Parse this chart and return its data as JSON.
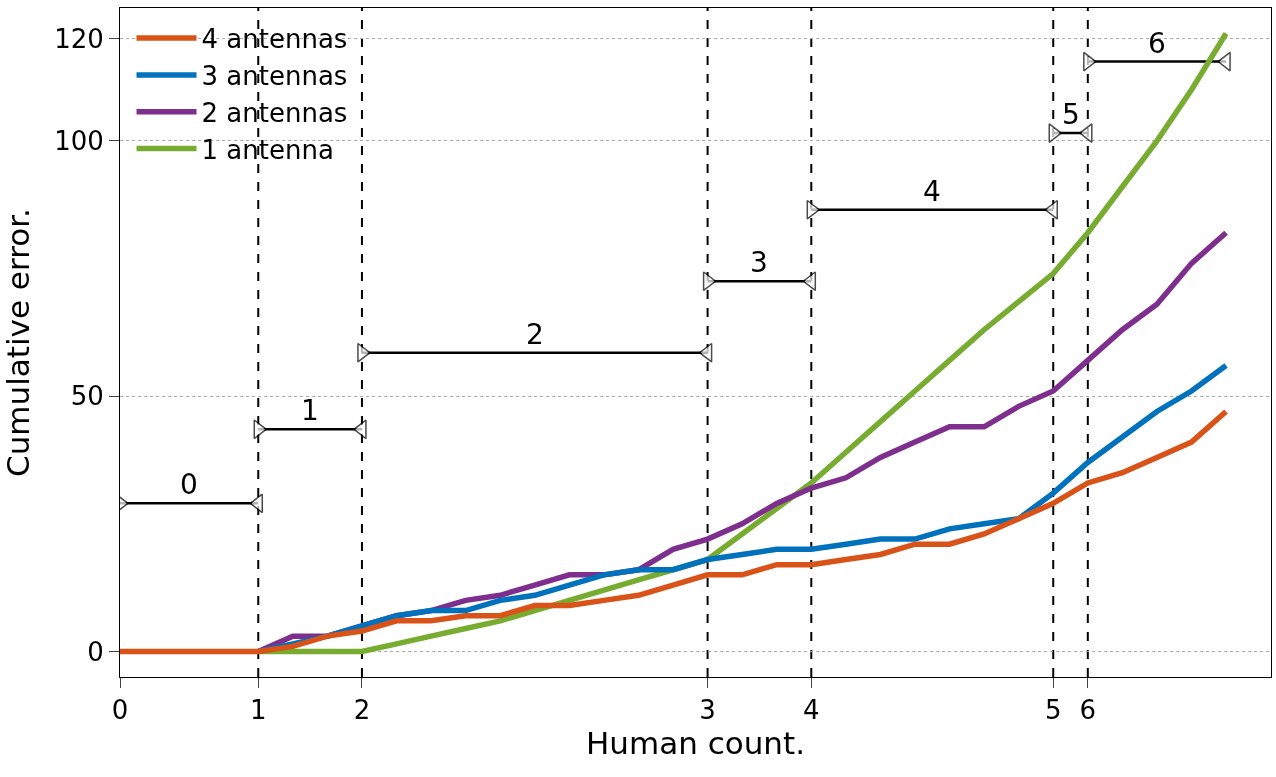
{
  "chart_data": {
    "type": "line",
    "xlabel": "Human count.",
    "ylabel": "Cumulative error.",
    "categories": [
      "0",
      null,
      null,
      null,
      "1",
      null,
      null,
      "2",
      null,
      null,
      null,
      null,
      null,
      null,
      null,
      null,
      null,
      "3",
      null,
      null,
      "4",
      null,
      null,
      null,
      null,
      null,
      null,
      "5",
      "6",
      null,
      null,
      null,
      null
    ],
    "series": [
      {
        "name": "4 antennas",
        "color": "#d95319",
        "values": [
          0,
          0,
          0,
          0,
          0,
          1,
          3,
          4,
          6,
          6,
          7,
          7,
          9,
          9,
          10,
          11,
          13,
          15,
          15,
          17,
          17,
          18,
          19,
          21,
          21,
          23,
          26,
          29,
          33,
          35,
          38,
          41,
          47
        ]
      },
      {
        "name": "3 antennas",
        "color": "#0072bd",
        "values": [
          null,
          null,
          null,
          null,
          0,
          1.5,
          3,
          5,
          7,
          8,
          8,
          10,
          11,
          13,
          15,
          16,
          16,
          18,
          19,
          20,
          20,
          21,
          22,
          22,
          24,
          25,
          26,
          31,
          37,
          42,
          47,
          51,
          56
        ]
      },
      {
        "name": "2 antennas",
        "color": "#7e2f8e",
        "values": [
          null,
          null,
          null,
          null,
          0,
          3,
          3,
          5,
          7,
          8,
          10,
          11,
          13,
          15,
          15,
          16,
          20,
          22,
          25,
          29,
          32,
          34,
          38,
          41,
          44,
          44,
          48,
          51,
          57,
          63,
          68,
          76,
          82
        ]
      },
      {
        "name": "1 antenna",
        "color": "#77ac30",
        "values": [
          null,
          null,
          null,
          null,
          0,
          0,
          0,
          0,
          1.5,
          3,
          4.5,
          6,
          8,
          10,
          12,
          14,
          16,
          18,
          23,
          28,
          33,
          39,
          45,
          51,
          57,
          63,
          68.5,
          74,
          82,
          91,
          100,
          110,
          121
        ]
      },
      {
        "name": "0",
        "type": "line",
        "marker": "triangle",
        "color": "#000000",
        "values": [
          29,
          null,
          null,
          null,
          29,
          null,
          null,
          null,
          null,
          null,
          null,
          null,
          null,
          null,
          null,
          null,
          null,
          null,
          null,
          null,
          null,
          null,
          null,
          null,
          null,
          null,
          null,
          null,
          null,
          null,
          null,
          null,
          null
        ]
      },
      {
        "name": "1",
        "type": "line",
        "marker": "triangle",
        "color": "#000000",
        "values": [
          null,
          null,
          null,
          null,
          43.5,
          null,
          null,
          43.5,
          null,
          null,
          null,
          null,
          null,
          null,
          null,
          null,
          null,
          null,
          null,
          null,
          null,
          null,
          null,
          null,
          null,
          null,
          null,
          null,
          null,
          null,
          null,
          null,
          null
        ]
      },
      {
        "name": "2",
        "type": "line",
        "marker": "triangle",
        "color": "#000000",
        "values": [
          null,
          null,
          null,
          null,
          null,
          null,
          null,
          58.5,
          null,
          null,
          null,
          null,
          null,
          null,
          null,
          null,
          null,
          58.5,
          null,
          null,
          null,
          null,
          null,
          null,
          null,
          null,
          null,
          null,
          null,
          null,
          null,
          null,
          null
        ]
      },
      {
        "name": "3",
        "type": "line",
        "marker": "triangle",
        "color": "#000000",
        "values": [
          null,
          null,
          null,
          null,
          null,
          null,
          null,
          null,
          null,
          null,
          null,
          null,
          null,
          null,
          null,
          null,
          null,
          72.5,
          null,
          null,
          72.5,
          null,
          null,
          null,
          null,
          null,
          null,
          null,
          null,
          null,
          null,
          null,
          null
        ]
      },
      {
        "name": "4",
        "type": "line",
        "marker": "triangle",
        "color": "#000000",
        "values": [
          null,
          null,
          null,
          null,
          null,
          null,
          null,
          null,
          null,
          null,
          null,
          null,
          null,
          null,
          null,
          null,
          null,
          null,
          null,
          null,
          86.5,
          null,
          null,
          null,
          null,
          null,
          null,
          86.5,
          null,
          null,
          null,
          null,
          null
        ]
      },
      {
        "name": "5",
        "type": "line",
        "marker": "triangle",
        "color": "#000000",
        "values": [
          null,
          null,
          null,
          null,
          null,
          null,
          null,
          null,
          null,
          null,
          null,
          null,
          null,
          null,
          null,
          null,
          null,
          null,
          null,
          null,
          null,
          null,
          null,
          null,
          null,
          null,
          null,
          101.5,
          101.5,
          null,
          null,
          null,
          null
        ]
      },
      {
        "name": "6",
        "type": "line",
        "marker": "triangle",
        "color": "#000000",
        "values": [
          null,
          null,
          null,
          null,
          null,
          null,
          null,
          null,
          null,
          null,
          null,
          null,
          null,
          null,
          null,
          null,
          null,
          null,
          null,
          null,
          null,
          null,
          null,
          null,
          null,
          null,
          null,
          null,
          115.5,
          null,
          null,
          null,
          115.5
        ]
      }
    ],
    "ref_lines": [
      {
        "axis": "x",
        "value": "1",
        "color": "#000000",
        "line_style": "dashed"
      },
      {
        "axis": "x",
        "value": "2",
        "color": "#000000",
        "line_style": "dashed"
      },
      {
        "axis": "x",
        "value": "3",
        "color": "#000000",
        "line_style": "dashed"
      },
      {
        "axis": "x",
        "value": "4",
        "color": "#000000",
        "line_style": "dashed"
      },
      {
        "axis": "x",
        "value": "5",
        "color": "#000000",
        "line_style": "dashed"
      },
      {
        "axis": "x",
        "value": "6",
        "color": "#000000",
        "line_style": "dashed"
      }
    ],
    "ylim": [
      -5,
      126
    ],
    "yticks": [
      0,
      50,
      100,
      120
    ],
    "grid": "y",
    "legend": "top left",
    "line_style": "solid",
    "marker": "none"
  }
}
